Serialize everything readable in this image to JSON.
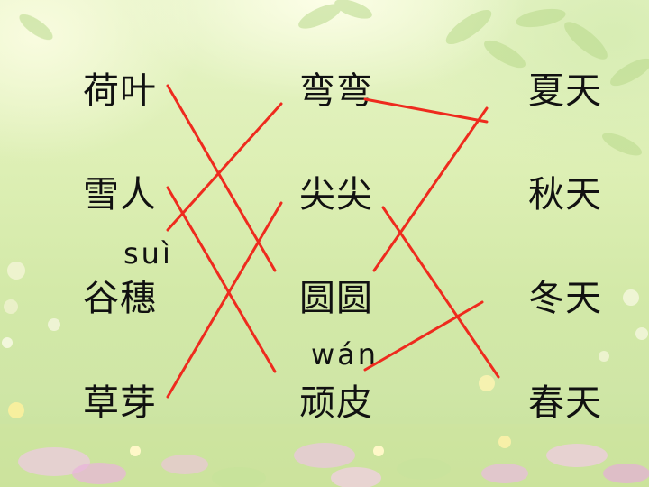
{
  "columns": {
    "left": [
      "荷叶",
      "雪人",
      "谷穗",
      "草芽"
    ],
    "middle": [
      "弯弯",
      "尖尖",
      "圆圆",
      "顽皮"
    ],
    "right": [
      "夏天",
      "秋天",
      "冬天",
      "春天"
    ]
  },
  "pinyin": {
    "sui": "suì",
    "wan": "wán"
  },
  "matching": [
    {
      "from": "荷叶",
      "to": "圆圆"
    },
    {
      "from": "雪人",
      "to": "顽皮"
    },
    {
      "from": "谷穗",
      "to": "弯弯"
    },
    {
      "from": "草芽",
      "to": "尖尖"
    },
    {
      "from": "弯弯",
      "to": "秋天"
    },
    {
      "from": "尖尖",
      "to": "春天"
    },
    {
      "from": "圆圆",
      "to": "夏天"
    },
    {
      "from": "顽皮",
      "to": "冬天"
    }
  ],
  "colors": {
    "line": "#ee2b1e",
    "text": "#111111"
  }
}
